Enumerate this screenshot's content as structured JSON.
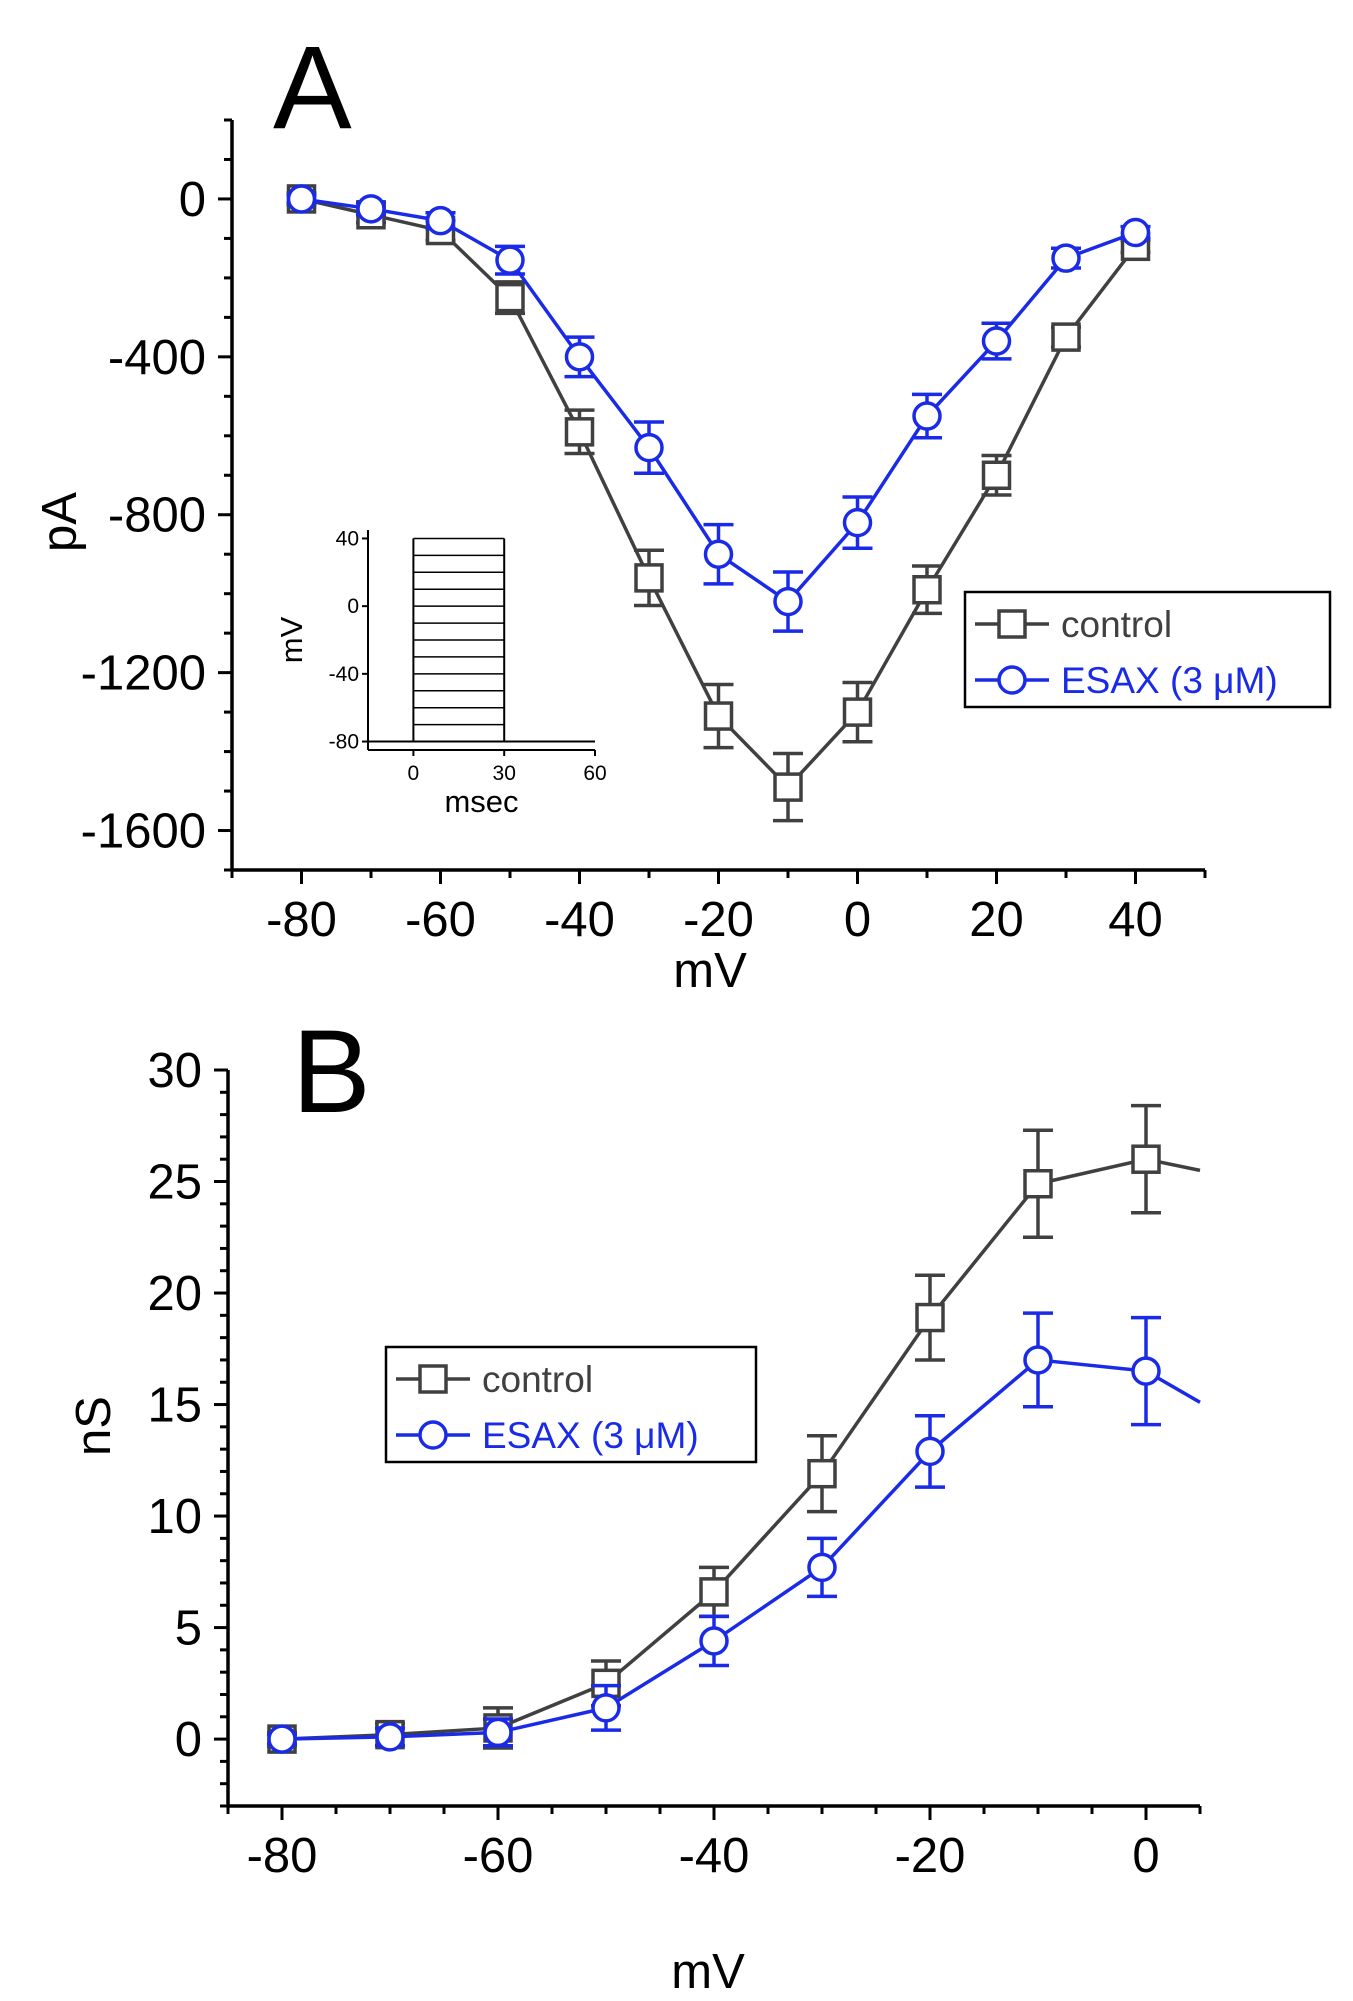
{
  "colors": {
    "control": "#404040",
    "esax": "#1a2be8",
    "axis": "#000000"
  },
  "chart_data": [
    {
      "panel": "A",
      "type": "line",
      "xlabel": "mV",
      "ylabel": "pA",
      "xlim": [
        -90,
        50
      ],
      "ylim": [
        -1700,
        200
      ],
      "xticks": [
        -80,
        -60,
        -40,
        -20,
        0,
        20,
        40
      ],
      "yticks": [
        0,
        -400,
        -800,
        -1200,
        -1600
      ],
      "grid": false,
      "legend": "right",
      "x": [
        -80,
        -70,
        -60,
        -50,
        -40,
        -30,
        -20,
        -10,
        0,
        10,
        20,
        30,
        40
      ],
      "series": [
        {
          "name": "control",
          "marker": "square",
          "color": "#404040",
          "values": [
            0,
            -40,
            -80,
            -250,
            -590,
            -960,
            -1310,
            -1490,
            -1300,
            -990,
            -700,
            -350,
            -120
          ],
          "errors": [
            15,
            20,
            25,
            40,
            55,
            70,
            80,
            85,
            75,
            60,
            50,
            25,
            15
          ]
        },
        {
          "name": "ESAX (3 μM)",
          "marker": "circle",
          "color": "#1a2be8",
          "values": [
            0,
            -25,
            -55,
            -155,
            -400,
            -630,
            -900,
            -1020,
            -820,
            -550,
            -360,
            -150,
            -85
          ],
          "errors": [
            10,
            15,
            20,
            35,
            50,
            65,
            75,
            75,
            65,
            55,
            45,
            25,
            15
          ]
        }
      ],
      "inset": {
        "xlabel": "msec",
        "ylabel": "mV",
        "xticks": [
          0,
          30,
          60
        ],
        "yticks": [
          40,
          0,
          -40,
          -80
        ],
        "xlim": [
          -15,
          60
        ],
        "ylim": [
          -85,
          45
        ],
        "holding": -80,
        "step_start": 0,
        "step_end": 30,
        "steps": [
          -80,
          -70,
          -60,
          -50,
          -40,
          -30,
          -20,
          -10,
          0,
          10,
          20,
          30,
          40
        ]
      }
    },
    {
      "panel": "B",
      "type": "line",
      "xlabel": "mV",
      "ylabel": "nS",
      "xlim": [
        -85,
        5
      ],
      "ylim": [
        -3,
        30
      ],
      "xticks": [
        -80,
        -60,
        -40,
        -20,
        0
      ],
      "yticks": [
        0,
        5,
        10,
        15,
        20,
        25,
        30
      ],
      "grid": false,
      "legend": "center-left",
      "x": [
        -80,
        -70,
        -60,
        -50,
        -40,
        -30,
        -20,
        -10,
        0,
        5
      ],
      "series": [
        {
          "name": "control",
          "marker": "square",
          "color": "#404040",
          "values": [
            0,
            0.2,
            0.5,
            2.5,
            6.6,
            11.9,
            18.9,
            24.9,
            26.0,
            25.5
          ],
          "errors": [
            0.3,
            0.5,
            0.9,
            1.0,
            1.1,
            1.7,
            1.9,
            2.4,
            2.4,
            null
          ]
        },
        {
          "name": "ESAX (3 μM)",
          "marker": "circle",
          "color": "#1a2be8",
          "values": [
            0,
            0.1,
            0.3,
            1.4,
            4.4,
            7.7,
            12.9,
            17.0,
            16.5,
            15.1
          ],
          "errors": [
            0.2,
            0.4,
            0.6,
            1.0,
            1.1,
            1.3,
            1.6,
            2.1,
            2.4,
            null
          ]
        }
      ]
    }
  ]
}
